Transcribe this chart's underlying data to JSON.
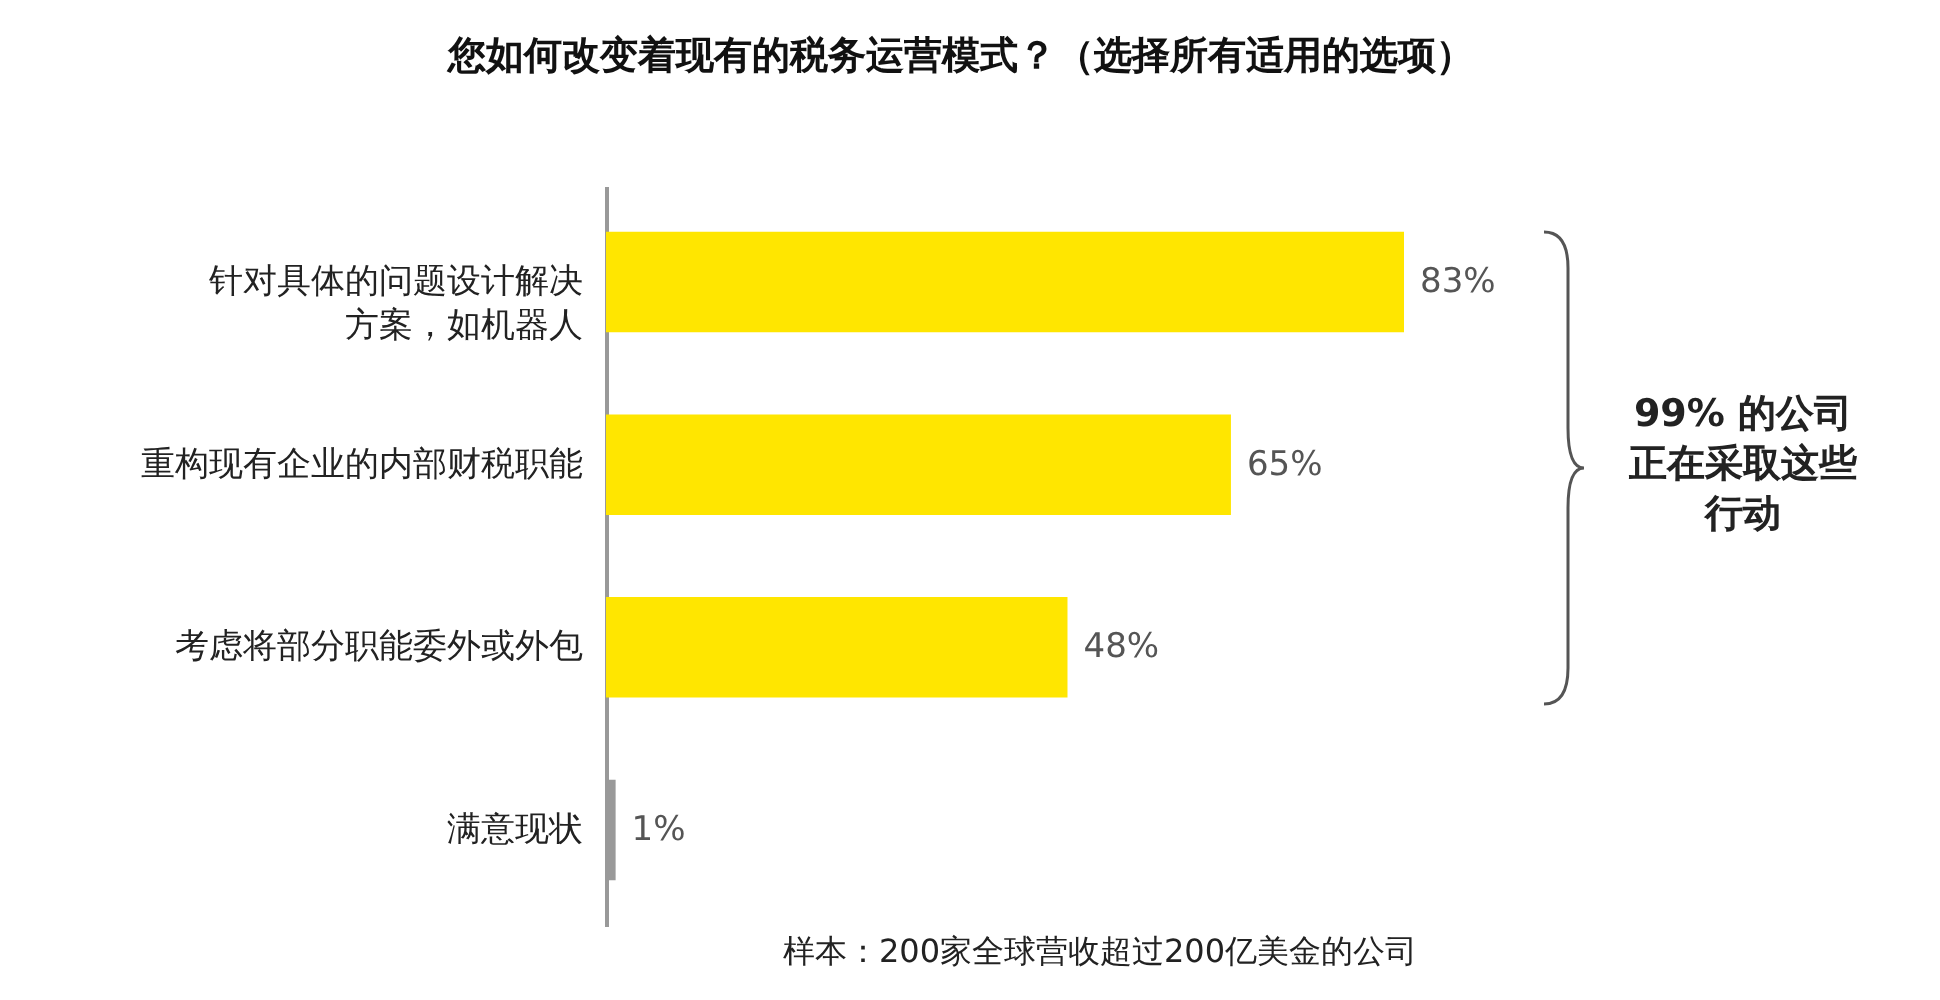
{
  "chart_data": {
    "type": "bar",
    "orientation": "horizontal",
    "title": "您如何改变着现有的税务运营模式？（选择所有适用的选项）",
    "categories": [
      "针对具体的问题设计解决方案，如机器人",
      "重构现有企业的内部财税职能",
      "考虑将部分职能委外或外包",
      "满意现状"
    ],
    "values": [
      83,
      65,
      48,
      1
    ],
    "colors": [
      "#ffe600",
      "#ffe600",
      "#ffe600",
      "#999999"
    ],
    "value_labels": [
      "83%",
      "65%",
      "48%",
      "1%"
    ],
    "tick_labels": "y",
    "annotations": [
      "99% 的公司正在采取这些行动",
      "样本：200家全球营收超过200亿美金的公司"
    ]
  }
}
